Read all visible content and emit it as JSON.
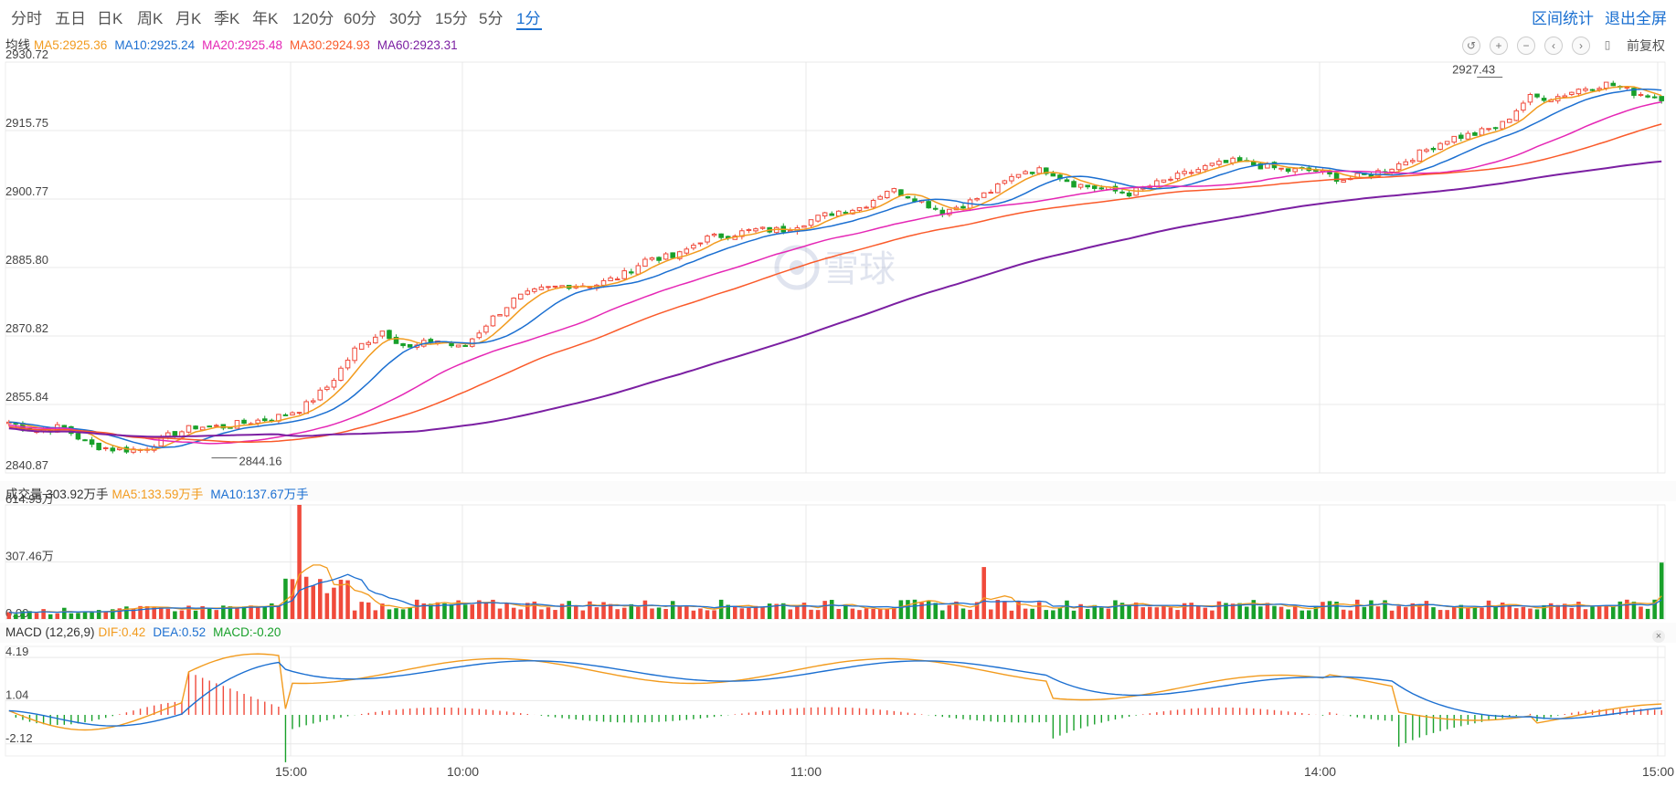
{
  "tabs": [
    {
      "label": "分时"
    },
    {
      "label": "五日"
    },
    {
      "label": "日K"
    },
    {
      "label": "周K"
    },
    {
      "label": "月K"
    },
    {
      "label": "季K"
    },
    {
      "label": "年K"
    },
    {
      "label": "120分"
    },
    {
      "label": "60分"
    },
    {
      "label": "30分"
    },
    {
      "label": "15分"
    },
    {
      "label": "5分"
    },
    {
      "label": "1分",
      "active": true
    }
  ],
  "links": {
    "interval_stats": "区间统计",
    "exit_fullscreen": "退出全屏"
  },
  "toolbar": {
    "icons": [
      "undo-icon",
      "plus-icon",
      "minus-icon",
      "chevron-left-icon",
      "chevron-right-icon",
      "candle-icon"
    ],
    "adjust_label": "前复权"
  },
  "ma_legend": {
    "label": "均线",
    "items": [
      {
        "text": "MA5:2925.36",
        "color": "#f29b1e"
      },
      {
        "text": "MA10:2925.24",
        "color": "#1b6fd1"
      },
      {
        "text": "MA20:2925.48",
        "color": "#e527b5"
      },
      {
        "text": "MA30:2924.93",
        "color": "#fa5a2a"
      },
      {
        "text": "MA60:2923.31",
        "color": "#7b1fa2"
      }
    ]
  },
  "vol_legend": {
    "label": "成交量 303.92万手",
    "items": [
      {
        "text": "MA5:133.59万手",
        "color": "#f29b1e"
      },
      {
        "text": "MA10:137.67万手",
        "color": "#1b6fd1"
      }
    ]
  },
  "macd_legend": {
    "label": "MACD (12,26,9)",
    "items": [
      {
        "text": "DIF:0.42",
        "color": "#f29b1e"
      },
      {
        "text": "DEA:0.52",
        "color": "#1b6fd1"
      },
      {
        "text": "MACD:-0.20",
        "color": "#18a02a"
      }
    ]
  },
  "watermark": "雪球",
  "colors": {
    "up": "#f04a3b",
    "down": "#18a02a",
    "grid": "#e8e8e8",
    "axis_text": "#444"
  },
  "chart_data": [
    {
      "type": "candlestick",
      "title": "",
      "y_ticks": [
        "2930.72",
        "2915.75",
        "2900.77",
        "2885.80",
        "2870.82",
        "2855.84",
        "2840.87"
      ],
      "ylim": [
        2840.87,
        2930.72
      ],
      "x_ticks": [
        "15:00",
        "10:00",
        "11:00",
        "14:00",
        "15:00"
      ],
      "annotations": [
        {
          "text": "2844.16",
          "value": 2844.16
        },
        {
          "text": "2927.43",
          "value": 2927.43
        }
      ],
      "close_anchors": [
        2852,
        2850,
        2851,
        2847,
        2846,
        2846,
        2849,
        2851,
        2851,
        2852,
        2853,
        2855,
        2860,
        2868,
        2872,
        2868,
        2870,
        2868,
        2874,
        2879,
        2881,
        2882,
        2882,
        2884,
        2888,
        2888,
        2892,
        2893,
        2894,
        2894,
        2896,
        2898,
        2899,
        2903,
        2901,
        2898,
        2900,
        2903,
        2907,
        2907,
        2904,
        2903,
        2902,
        2904,
        2906,
        2908,
        2909,
        2908,
        2907,
        2907,
        2905,
        2906,
        2908,
        2911,
        2914,
        2915,
        2917,
        2923,
        2923,
        2925,
        2926,
        2924,
        2923
      ],
      "series": [
        {
          "name": "MA5"
        },
        {
          "name": "MA10"
        },
        {
          "name": "MA20"
        },
        {
          "name": "MA30"
        },
        {
          "name": "MA60"
        }
      ]
    },
    {
      "type": "bar",
      "title": "",
      "y_ticks": [
        "614.93万",
        "307.46万",
        "0.00"
      ],
      "ylim": [
        0,
        614.93
      ],
      "spikes": [
        {
          "t": 0.175,
          "v": 614.93
        },
        {
          "t": 0.59,
          "v": 280
        },
        {
          "t": 0.998,
          "v": 303.92
        }
      ],
      "series": [
        {
          "name": "MA5"
        },
        {
          "name": "MA10"
        }
      ]
    },
    {
      "type": "line",
      "title": "",
      "y_ticks": [
        "4.19",
        "1.04",
        "-2.12"
      ],
      "ylim": [
        -3.0,
        5.0
      ],
      "series": [
        {
          "name": "DIF"
        },
        {
          "name": "DEA"
        },
        {
          "name": "MACD"
        }
      ]
    }
  ]
}
